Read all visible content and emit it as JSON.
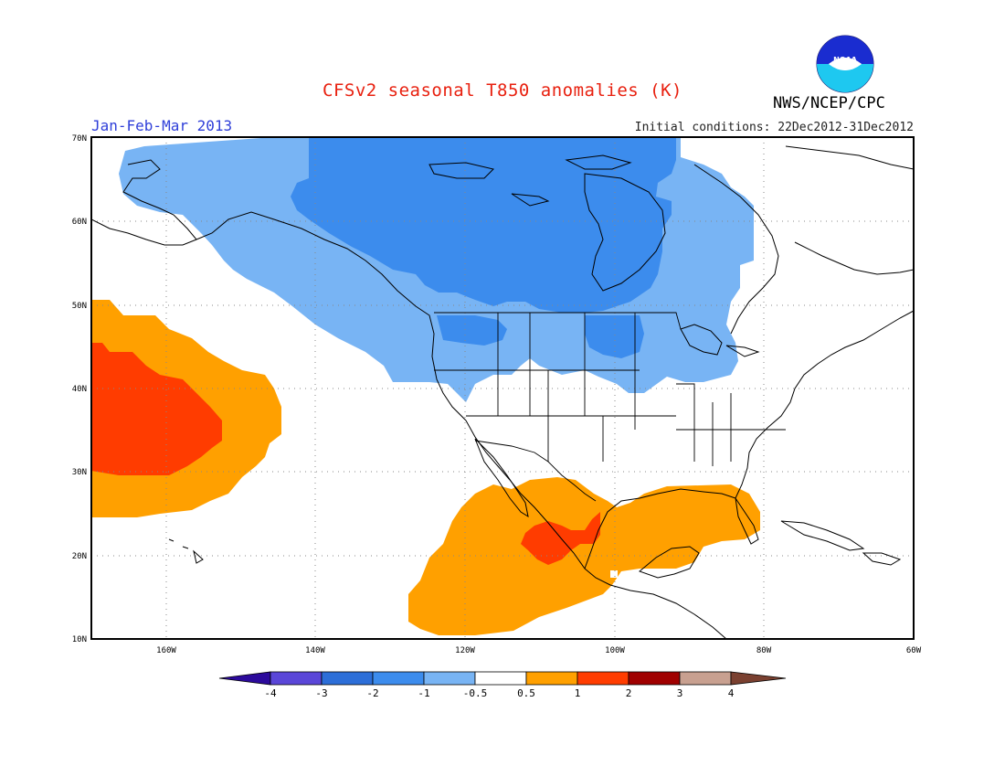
{
  "header": {
    "title": "CFSv2 seasonal T850 anomalies (K)",
    "period": "Jan-Feb-Mar 2013",
    "initial_conditions": "Initial conditions: 22Dec2012-31Dec2012",
    "agency": "NWS/NCEP/CPC",
    "logo_text": "NOAA"
  },
  "map": {
    "projection": "cylindrical",
    "lat_range": [
      10,
      70
    ],
    "lon_range": [
      -172,
      -60
    ],
    "lat_labels": [
      "70N",
      "60N",
      "50N",
      "40N",
      "30N",
      "20N",
      "10N"
    ],
    "lon_labels": [
      "160W",
      "140W",
      "120W",
      "100W",
      "80W",
      "60W"
    ],
    "anomaly_regions": [
      {
        "category": "-1 to -0.5",
        "color": "#78b4f4",
        "region": "Alaska, western Canada, NW Pacific coast"
      },
      {
        "category": "-2 to -1",
        "color": "#3c8ced",
        "region": "Central and northern Canada, Hudson Bay"
      },
      {
        "category": "0.5 to 1",
        "color": "#ffa000",
        "region": "Subtropical NE Pacific (around 35N 160W)"
      },
      {
        "category": "1 to 2",
        "color": "#ff3c00",
        "region": "Core near 35N 165W"
      },
      {
        "category": "0.5 to 1",
        "color": "#ffa000",
        "region": "Mexico, Gulf of Mexico, eastern Pacific off Mexico"
      },
      {
        "category": "1 to 2",
        "color": "#ff3c00",
        "region": "Central Mexico near 22N 108W"
      }
    ]
  },
  "colorbar": {
    "colors": [
      "#2c0a9c",
      "#5a46d8",
      "#2c6ed8",
      "#3c8ced",
      "#78b4f4",
      "#ffffff",
      "#ffa000",
      "#ff3c00",
      "#a00000",
      "#c8a090",
      "#7a4030"
    ],
    "labels": [
      "-4",
      "-3",
      "-2",
      "-1",
      "-0.5",
      "0.5",
      "1",
      "2",
      "3",
      "4"
    ]
  }
}
